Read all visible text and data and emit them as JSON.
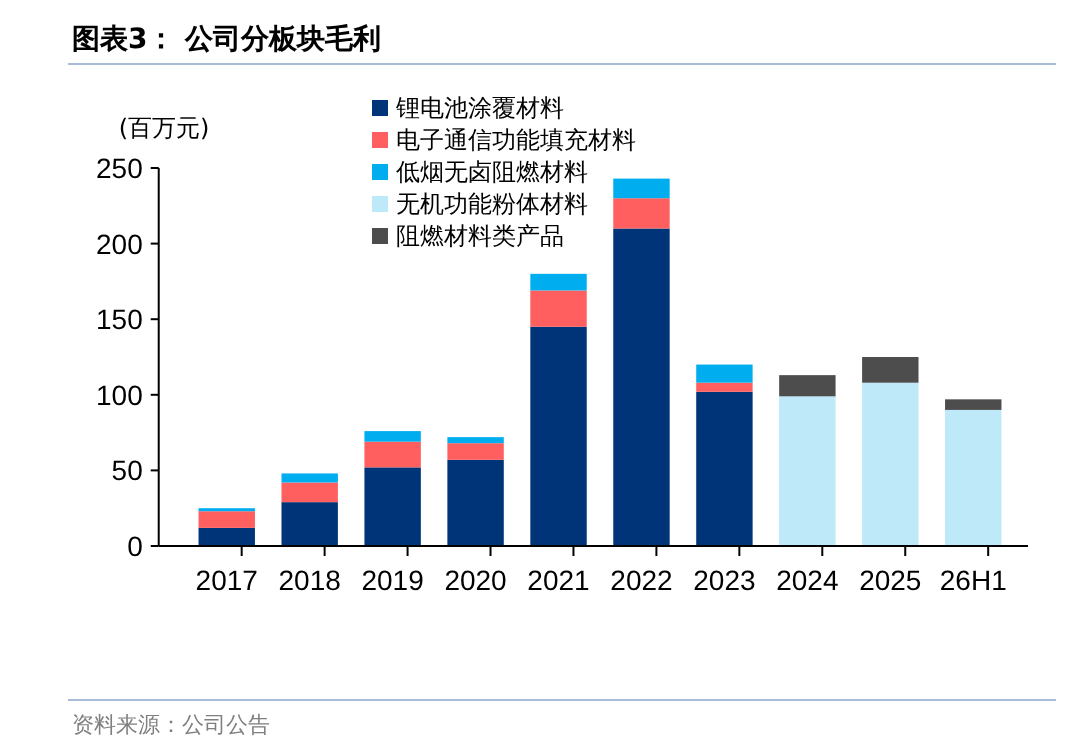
{
  "chart_data": {
    "type": "bar",
    "title": "图表3：  公司分板块毛利",
    "ylabel": "(百万元)",
    "stacked": true,
    "legend": "top",
    "grid": false,
    "categories": [
      "2017",
      "2018",
      "2019",
      "2020",
      "2021",
      "2022",
      "2023",
      "2024",
      "2025",
      "26H1"
    ],
    "ylim": [
      0,
      250
    ],
    "yticks": [
      0,
      50,
      100,
      150,
      200,
      250
    ],
    "series": [
      {
        "name": "锂电池涂覆材料",
        "color": "#003478",
        "values": [
          12,
          29,
          52,
          57,
          145,
          210,
          102,
          null,
          null,
          null
        ]
      },
      {
        "name": "电子通信功能填充材料",
        "color": "#ff5f5f",
        "values": [
          11,
          13,
          17,
          11,
          24,
          20,
          6,
          null,
          null,
          null
        ]
      },
      {
        "name": "低烟无卤阻燃材料",
        "color": "#00aeef",
        "values": [
          2,
          6,
          7,
          4,
          11,
          13,
          12,
          null,
          null,
          null
        ]
      },
      {
        "name": "无机功能粉体材料",
        "color": "#bde9f8",
        "values": [
          null,
          null,
          null,
          null,
          null,
          null,
          null,
          99,
          108,
          90
        ]
      },
      {
        "name": "阻燃材料类产品",
        "color": "#4d4d4d",
        "values": [
          null,
          null,
          null,
          null,
          null,
          null,
          null,
          14,
          17,
          7
        ]
      }
    ],
    "annotations": [
      "资料来源：公司公告"
    ]
  }
}
